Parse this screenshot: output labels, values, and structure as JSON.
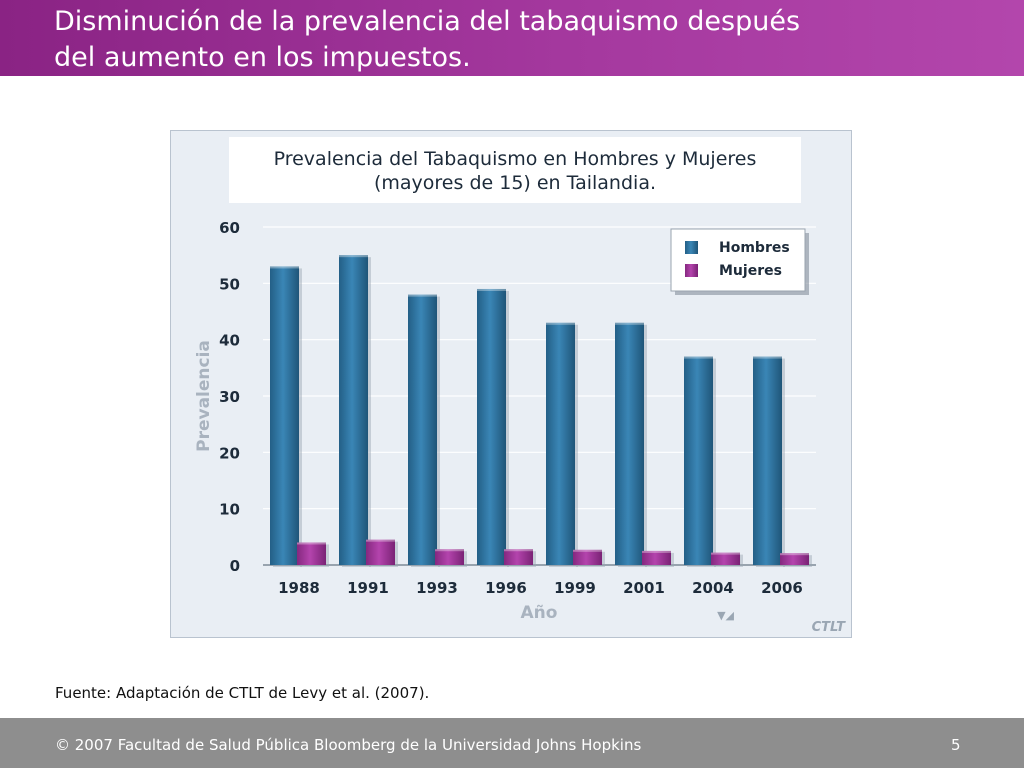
{
  "slide": {
    "title_line1": "Disminución de la prevalencia del tabaquismo después",
    "title_line2": "del aumento en los impuestos.",
    "source": "Fuente: Adaptación de CTLT de Levy et al. (2007).",
    "footer": "© 2007 Facultad de Salud Pública Bloomberg de la Universidad Johns Hopkins",
    "page_number": "5",
    "accent_color": "#a4389e",
    "footer_color": "#8e8e8e"
  },
  "chart_data": {
    "type": "bar",
    "title_line1": "Prevalencia del Tabaquismo en Hombres y Mujeres",
    "title_line2": "(mayores de 15) en Tailandia.",
    "xlabel": "Año",
    "ylabel": "Prevalencia",
    "categories": [
      "1988",
      "1991",
      "1993",
      "1996",
      "1999",
      "2001",
      "2004",
      "2006"
    ],
    "series": [
      {
        "name": "Hombres",
        "color": "#2f7aa8",
        "values": [
          53,
          55,
          48,
          49,
          43,
          43,
          37,
          37
        ]
      },
      {
        "name": "Mujeres",
        "color": "#a3359f",
        "values": [
          4,
          4.5,
          2.8,
          2.8,
          2.7,
          2.5,
          2.2,
          2.1
        ]
      }
    ],
    "ylim": [
      0,
      60
    ],
    "yticks": [
      0,
      10,
      20,
      30,
      40,
      50,
      60
    ],
    "grid": true,
    "legend_position": "top-right",
    "watermark": "CTLT"
  }
}
